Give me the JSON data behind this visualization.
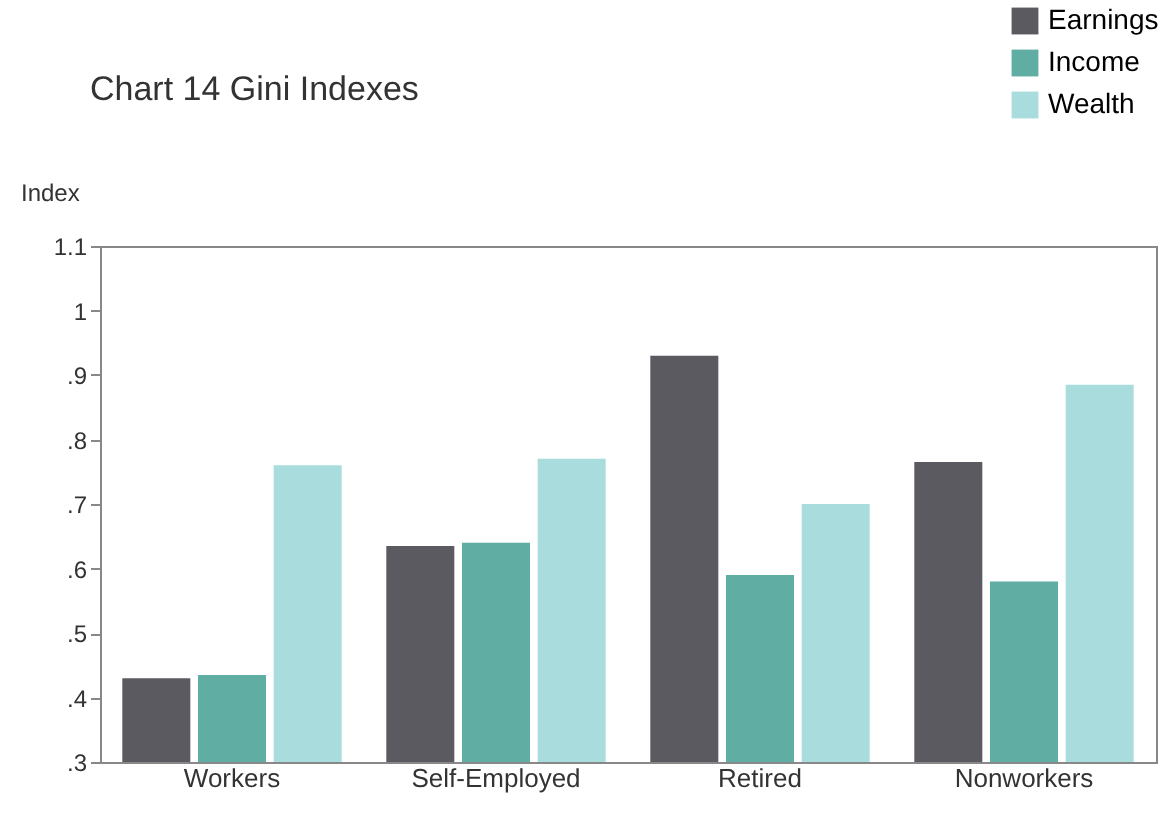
{
  "chart_data": {
    "type": "bar",
    "title": "Chart 14  Gini Indexes",
    "ylabel": "Index",
    "categories": [
      "Workers",
      "Self-Employed",
      "Retired",
      "Nonworkers"
    ],
    "series": [
      {
        "name": "Earnings",
        "color": "#5a5a60",
        "values": [
          0.43,
          0.635,
          0.93,
          0.765
        ]
      },
      {
        "name": "Income",
        "color": "#5fada3",
        "values": [
          0.435,
          0.64,
          0.59,
          0.58
        ]
      },
      {
        "name": "Wealth",
        "color": "#a9dcdc",
        "values": [
          0.76,
          0.77,
          0.7,
          0.885
        ]
      }
    ],
    "ylim": [
      0.3,
      1.1
    ],
    "yticks": [
      {
        "value": 0.3,
        "label": ".3"
      },
      {
        "value": 0.4,
        "label": ".4"
      },
      {
        "value": 0.5,
        "label": ".5"
      },
      {
        "value": 0.6,
        "label": ".6"
      },
      {
        "value": 0.7,
        "label": ".7"
      },
      {
        "value": 0.8,
        "label": ".8"
      },
      {
        "value": 0.9,
        "label": ".9"
      },
      1,
      1.1
    ],
    "grid": false,
    "legend": "top right"
  }
}
